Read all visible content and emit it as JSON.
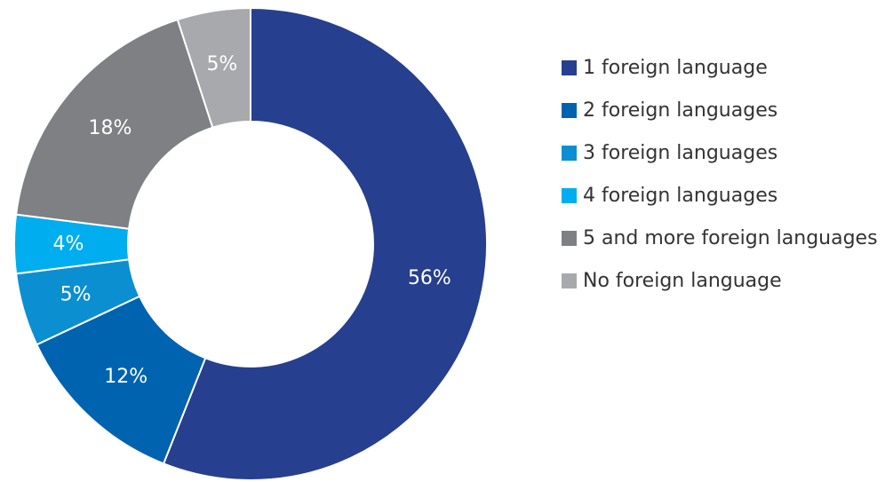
{
  "chart_data": {
    "type": "pie",
    "variant": "donut",
    "legend_position": "right",
    "slices": [
      {
        "label": "1 foreign language",
        "value": 56,
        "display": "56%",
        "color": "#263f8e"
      },
      {
        "label": "2 foreign languages",
        "value": 12,
        "display": "12%",
        "color": "#0063b0"
      },
      {
        "label": "3 foreign languages",
        "value": 5,
        "display": "5%",
        "color": "#0b8fd1"
      },
      {
        "label": "4 foreign languages",
        "value": 4,
        "display": "4%",
        "color": "#00adee"
      },
      {
        "label": "5 and more foreign languages",
        "value": 18,
        "display": "18%",
        "color": "#7f8083"
      },
      {
        "label": "No foreign language",
        "value": 5,
        "display": "5%",
        "color": "#a7a9ac"
      }
    ]
  }
}
